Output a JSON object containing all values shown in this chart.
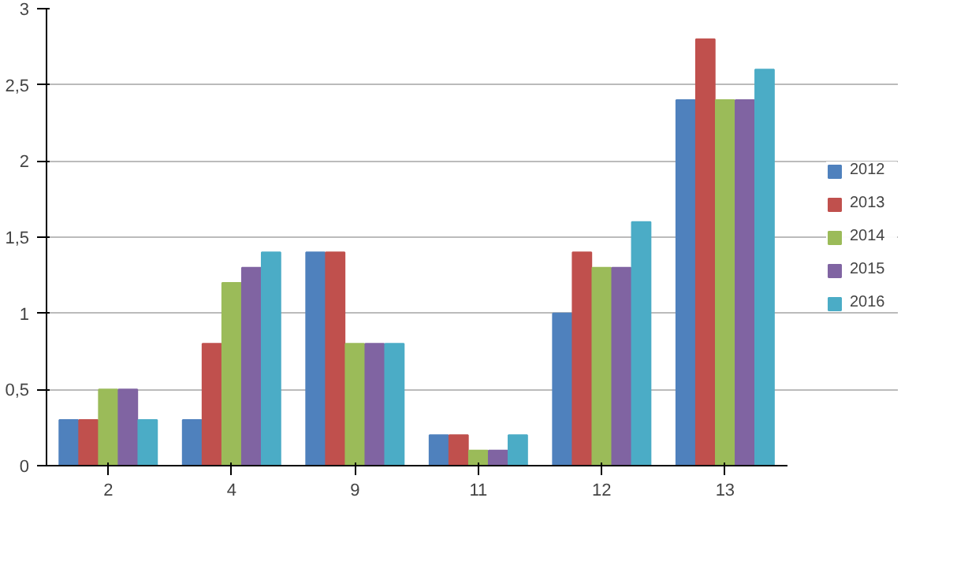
{
  "chart_data": {
    "type": "bar",
    "categories": [
      "2",
      "4",
      "9",
      "11",
      "12",
      "13"
    ],
    "series": [
      {
        "name": "2012",
        "color": "#4f81bd",
        "values": [
          0.3,
          0.3,
          1.4,
          0.2,
          1.0,
          2.4
        ]
      },
      {
        "name": "2013",
        "color": "#c0504d",
        "values": [
          0.3,
          0.8,
          1.4,
          0.2,
          1.4,
          2.8
        ]
      },
      {
        "name": "2014",
        "color": "#9bbb59",
        "values": [
          0.5,
          1.2,
          0.8,
          0.1,
          1.3,
          2.4
        ]
      },
      {
        "name": "2015",
        "color": "#8064a2",
        "values": [
          0.5,
          1.3,
          0.8,
          0.1,
          1.3,
          2.4
        ]
      },
      {
        "name": "2016",
        "color": "#4bacc6",
        "values": [
          0.3,
          1.4,
          0.8,
          0.2,
          1.6,
          2.6
        ]
      }
    ],
    "ylim": [
      0,
      3
    ],
    "yticks": [
      0,
      {
        "value": 0.5,
        "label": "0,5"
      },
      1,
      {
        "value": 1.5,
        "label": "1,5"
      },
      2,
      {
        "value": 2.5,
        "label": "2,5"
      },
      3
    ],
    "grid": "y",
    "legend": "right"
  }
}
